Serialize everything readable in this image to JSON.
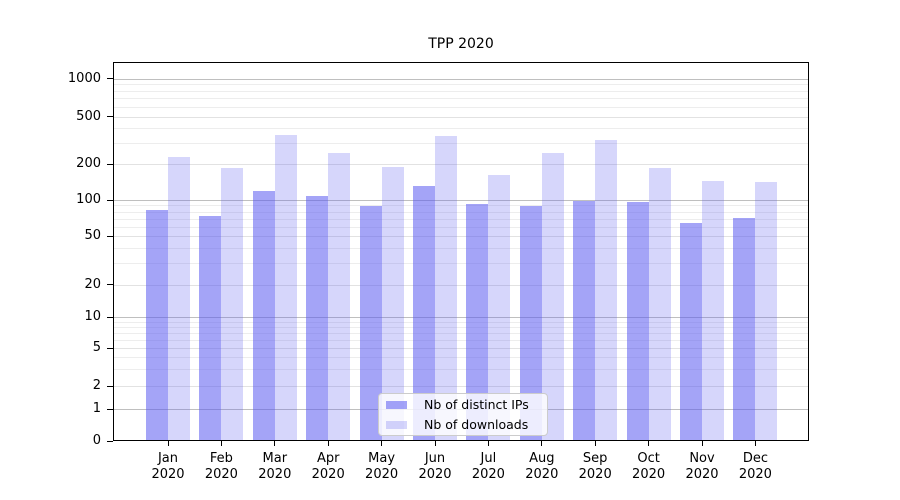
{
  "chart_data": {
    "type": "bar",
    "title": "TPP 2020",
    "categories": [
      "Jan 2020",
      "Feb 2020",
      "Mar 2020",
      "Apr 2020",
      "May 2020",
      "Jun 2020",
      "Jul 2020",
      "Aug 2020",
      "Sep 2020",
      "Oct 2020",
      "Nov 2020",
      "Dec 2020"
    ],
    "series": [
      {
        "name": "Nb of distinct IPs",
        "color": "#5a5af0",
        "alpha": 0.55,
        "values": [
          83,
          74,
          119,
          107,
          89,
          131,
          92,
          89,
          98,
          97,
          64,
          71
        ]
      },
      {
        "name": "Nb of downloads",
        "color": "#5a5af0",
        "alpha": 0.25,
        "values": [
          230,
          185,
          350,
          245,
          190,
          340,
          162,
          245,
          320,
          186,
          145,
          141
        ]
      }
    ],
    "xlabel": "",
    "ylabel": "",
    "yscale": "symlog",
    "yticks": [
      0,
      1,
      2,
      5,
      10,
      20,
      50,
      100,
      200,
      500,
      1000
    ],
    "ytick_labels": [
      "0",
      "1",
      "2",
      "5",
      "10",
      "20",
      "50",
      "100",
      "200",
      "500",
      "1000"
    ],
    "ylim": [
      0,
      1370
    ],
    "grid": "both",
    "legend_position": "lower center",
    "grid_colors": {
      "major": "#bfbfbf",
      "minor_labeled": "#e2e2e2",
      "minor": "#ededed"
    }
  }
}
